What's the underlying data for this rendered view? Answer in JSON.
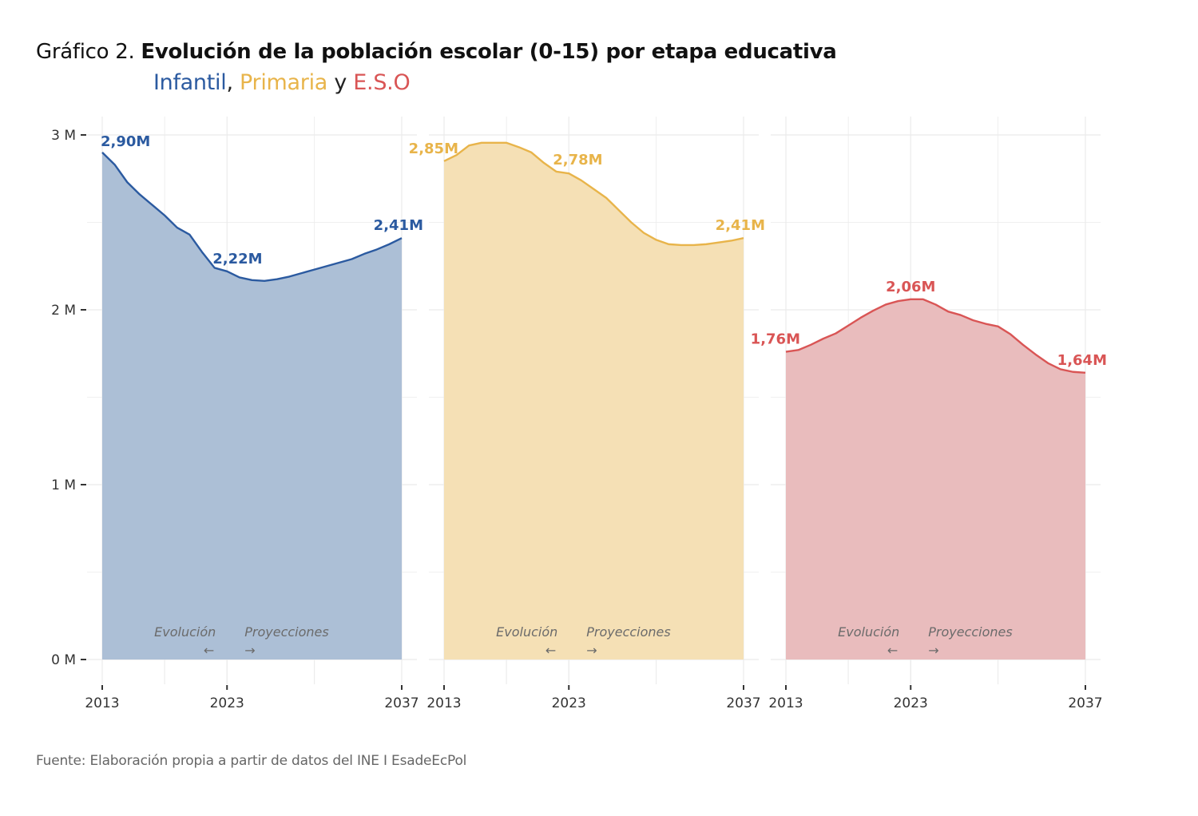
{
  "title": {
    "prefix": "Gráfico 2. ",
    "main": "Evolución de la población escolar (0-15) por etapa educativa"
  },
  "subtitle": {
    "parts": [
      {
        "text": "Infantil",
        "color": "#2b5aa0"
      },
      {
        "text": ", ",
        "color": "#222222"
      },
      {
        "text": "Primaria",
        "color": "#e8b44a"
      },
      {
        "text": " y ",
        "color": "#222222"
      },
      {
        "text": "E.S.O",
        "color": "#d95555"
      }
    ]
  },
  "source": "Fuente: Elaboración propia a partir de datos del INE I EsadeEcPol",
  "chart_data": {
    "type": "area",
    "title": "Evolución de la población escolar (0-15) por etapa educativa",
    "xlabel": "",
    "ylabel": "",
    "ylim": [
      0,
      3000000
    ],
    "xlim": [
      2013,
      2037
    ],
    "y_ticks": [
      0,
      1000000,
      2000000,
      3000000
    ],
    "y_tick_labels": [
      "0 M",
      "1 M",
      "2 M",
      "3 M"
    ],
    "x_ticks": [
      2013,
      2023,
      2037
    ],
    "x_tick_labels": [
      "2013",
      "2023",
      "2037"
    ],
    "grid": true,
    "legend": "none",
    "annotations": {
      "left_label": "Evolución",
      "left_arrow": "←",
      "right_label": "Proyecciones",
      "right_arrow": "→",
      "split_year": 2023
    },
    "x": [
      2013,
      2014,
      2015,
      2016,
      2017,
      2018,
      2019,
      2020,
      2021,
      2022,
      2023,
      2024,
      2025,
      2026,
      2027,
      2028,
      2029,
      2030,
      2031,
      2032,
      2033,
      2034,
      2035,
      2036,
      2037
    ],
    "series": [
      {
        "name": "Infantil",
        "line_color": "#2b5aa0",
        "fill_color": "#acbfd6",
        "values": [
          2.9,
          2.83,
          2.73,
          2.66,
          2.6,
          2.54,
          2.47,
          2.43,
          2.33,
          2.24,
          2.22,
          2.185,
          2.17,
          2.165,
          2.175,
          2.19,
          2.21,
          2.23,
          2.25,
          2.27,
          2.29,
          2.32,
          2.345,
          2.375,
          2.41
        ],
        "unit": "millions",
        "labels": [
          {
            "year": 2013,
            "text": "2,90M"
          },
          {
            "year": 2023,
            "text": "2,22M"
          },
          {
            "year": 2037,
            "text": "2,41M"
          }
        ]
      },
      {
        "name": "Primaria",
        "line_color": "#e8b44a",
        "fill_color": "#f5e0b5",
        "values": [
          2.85,
          2.885,
          2.94,
          2.955,
          2.955,
          2.955,
          2.93,
          2.9,
          2.84,
          2.79,
          2.78,
          2.74,
          2.69,
          2.64,
          2.57,
          2.5,
          2.44,
          2.4,
          2.375,
          2.37,
          2.37,
          2.375,
          2.385,
          2.395,
          2.41
        ],
        "unit": "millions",
        "labels": [
          {
            "year": 2013,
            "text": "2,85M"
          },
          {
            "year": 2023,
            "text": "2,78M"
          },
          {
            "year": 2037,
            "text": "2,41M"
          }
        ]
      },
      {
        "name": "E.S.O",
        "line_color": "#d95555",
        "fill_color": "#e9bcbd",
        "values": [
          1.76,
          1.77,
          1.8,
          1.835,
          1.865,
          1.91,
          1.955,
          1.995,
          2.03,
          2.05,
          2.06,
          2.06,
          2.03,
          1.99,
          1.97,
          1.94,
          1.92,
          1.905,
          1.86,
          1.8,
          1.745,
          1.695,
          1.66,
          1.645,
          1.64
        ],
        "unit": "millions",
        "labels": [
          {
            "year": 2013,
            "text": "1,76M"
          },
          {
            "year": 2023,
            "text": "2,06M"
          },
          {
            "year": 2037,
            "text": "1,64M"
          }
        ]
      }
    ]
  }
}
